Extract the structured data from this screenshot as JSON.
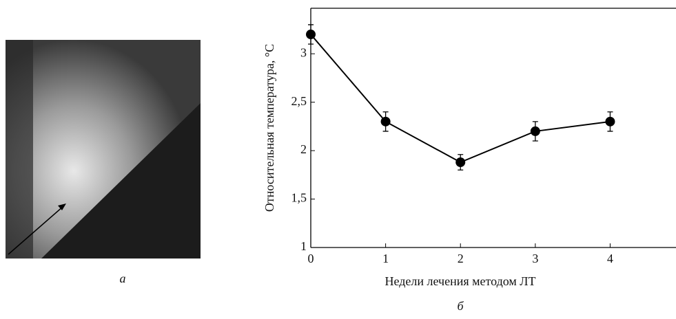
{
  "panels": [
    "а",
    "б"
  ],
  "chart_data": {
    "type": "line",
    "x": [
      0,
      1,
      2,
      3,
      4
    ],
    "series": [
      {
        "color": "#000000",
        "values": [
          3.2,
          2.3,
          1.88,
          2.2,
          2.3
        ],
        "errors": [
          0.1,
          0.1,
          0.08,
          0.1,
          0.1
        ]
      }
    ],
    "xlabel": "Недели лечения методом ЛТ",
    "ylabel": "Относительная температура, °C",
    "xlim": [
      0,
      4.88
    ],
    "ylim": [
      1,
      3.47
    ],
    "xticks": [
      0,
      1,
      2,
      3,
      4
    ],
    "yticks": [
      1,
      {
        "value": 1.5,
        "label": "1,5"
      },
      2,
      {
        "value": 2.5,
        "label": "2,5"
      },
      3
    ]
  }
}
